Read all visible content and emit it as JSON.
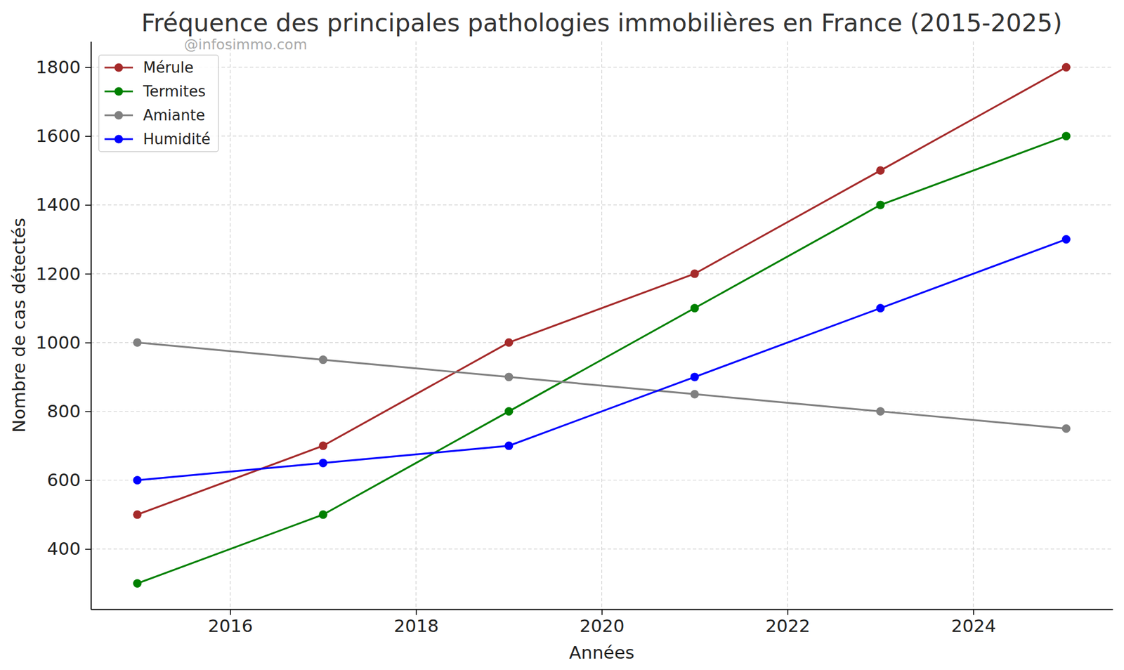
{
  "chart_data": {
    "type": "line",
    "title": "Fréquence des principales pathologies immobilières en France (2015-2025)",
    "x_label": "Années",
    "y_label": "Nombre de cas détectés",
    "annotations": [
      "@infosimmo.com"
    ],
    "x": [
      2015,
      2017,
      2019,
      2021,
      2023,
      2025
    ],
    "series": [
      {
        "name": "Mérule",
        "color": "#a52a2a",
        "marker": "circle",
        "values": [
          500,
          700,
          1000,
          1200,
          1500,
          1800
        ]
      },
      {
        "name": "Termites",
        "color": "#008000",
        "marker": "circle",
        "values": [
          300,
          500,
          800,
          1100,
          1400,
          1600
        ]
      },
      {
        "name": "Amiante",
        "color": "#808080",
        "marker": "circle",
        "values": [
          1000,
          950,
          900,
          850,
          800,
          750
        ]
      },
      {
        "name": "Humidité",
        "color": "#0000ff",
        "marker": "circle",
        "values": [
          600,
          650,
          700,
          900,
          1100,
          1300
        ]
      }
    ],
    "xlim": [
      2014.5,
      2025.5
    ],
    "xticks": [
      2016,
      2018,
      2020,
      2022,
      2024
    ],
    "ylim": [
      225,
      1875
    ],
    "yticks": [
      400,
      600,
      800,
      1000,
      1200,
      1400,
      1600,
      1800
    ],
    "grid": true,
    "legend": "upper left"
  }
}
